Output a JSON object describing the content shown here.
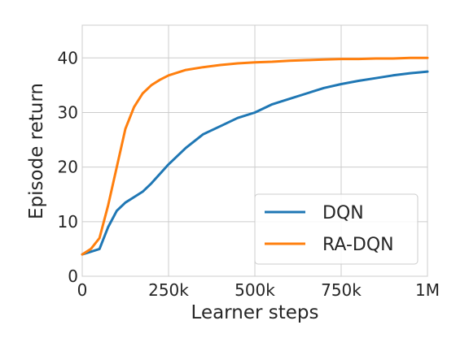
{
  "chart_data": {
    "type": "line",
    "title": "",
    "xlabel": "Learner steps",
    "ylabel": "Episode return",
    "xlim": [
      0,
      1000000
    ],
    "ylim": [
      0,
      46
    ],
    "x_ticks": [
      {
        "value": 0,
        "label": "0"
      },
      {
        "value": 250000,
        "label": "250k"
      },
      {
        "value": 500000,
        "label": "500k"
      },
      {
        "value": 750000,
        "label": "750k"
      },
      {
        "value": 1000000,
        "label": "1M"
      }
    ],
    "y_ticks": [
      0,
      10,
      20,
      30,
      40
    ],
    "grid": true,
    "legend_position": "lower-right",
    "series": [
      {
        "name": "DQN",
        "color": "#1f77b4",
        "x": [
          0,
          25000,
          50000,
          75000,
          100000,
          125000,
          150000,
          175000,
          200000,
          250000,
          300000,
          350000,
          400000,
          450000,
          500000,
          550000,
          600000,
          650000,
          700000,
          750000,
          800000,
          850000,
          900000,
          950000,
          1000000
        ],
        "y": [
          4,
          4.5,
          5,
          9,
          12,
          13.5,
          14.5,
          15.5,
          17,
          20.5,
          23.5,
          26,
          27.5,
          29,
          30,
          31.5,
          32.5,
          33.5,
          34.5,
          35.2,
          35.8,
          36.3,
          36.8,
          37.2,
          37.5
        ]
      },
      {
        "name": "RA-DQN",
        "color": "#ff7f0e",
        "x": [
          0,
          25000,
          50000,
          75000,
          100000,
          125000,
          150000,
          175000,
          200000,
          225000,
          250000,
          300000,
          350000,
          400000,
          450000,
          500000,
          550000,
          600000,
          650000,
          700000,
          750000,
          800000,
          850000,
          900000,
          950000,
          1000000
        ],
        "y": [
          4,
          5,
          7,
          13,
          20,
          27,
          31,
          33.5,
          35,
          36,
          36.8,
          37.8,
          38.3,
          38.7,
          39,
          39.2,
          39.3,
          39.5,
          39.6,
          39.7,
          39.8,
          39.8,
          39.9,
          39.9,
          40,
          40
        ]
      }
    ]
  }
}
